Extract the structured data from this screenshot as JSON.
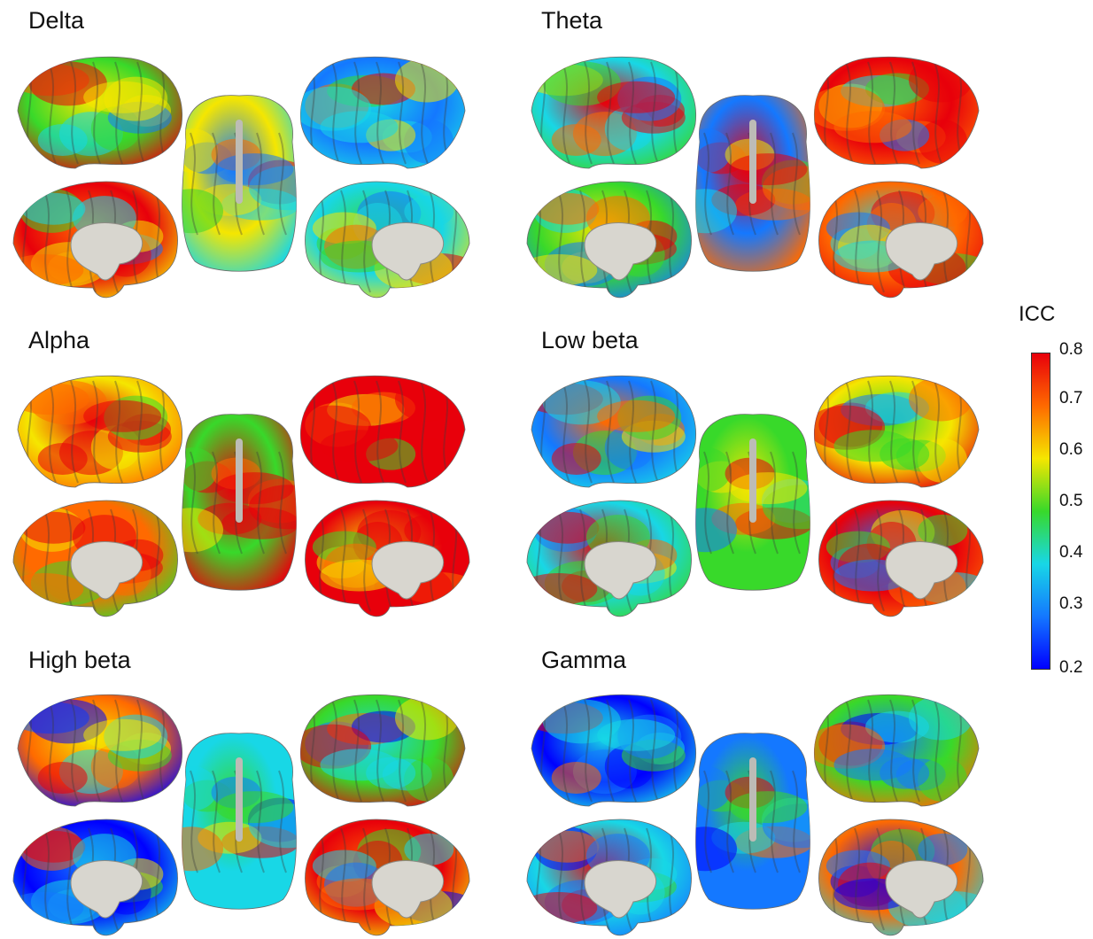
{
  "panels": [
    {
      "title": "Delta"
    },
    {
      "title": "Theta"
    },
    {
      "title": "Alpha"
    },
    {
      "title": "Low beta"
    },
    {
      "title": "High beta"
    },
    {
      "title": "Gamma"
    }
  ],
  "colorbar": {
    "title": "ICC",
    "ticks": [
      "0.8",
      "0.7",
      "0.6",
      "0.5",
      "0.4",
      "0.3",
      "0.2"
    ],
    "min": 0.2,
    "max": 0.8,
    "colormap": "jet",
    "colors": [
      "#e8000b",
      "#ff6a00",
      "#f5e600",
      "#38d92a",
      "#18d7e6",
      "#1478ff",
      "#0000ff"
    ]
  }
}
